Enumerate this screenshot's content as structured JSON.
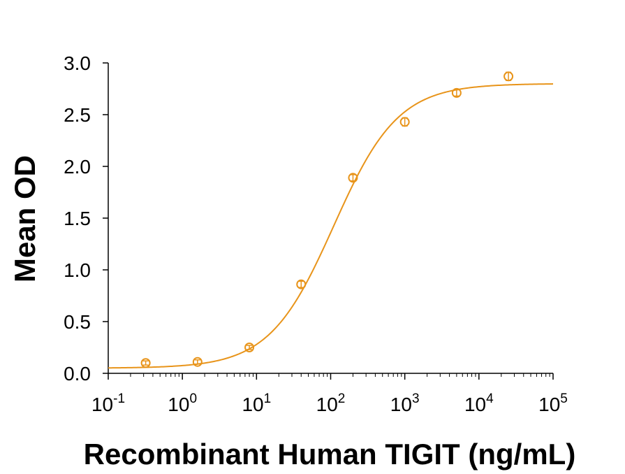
{
  "chart_data": {
    "type": "scatter",
    "title": "",
    "xlabel": "Recombinant Human TIGIT (ng/mL)",
    "ylabel": "Mean OD",
    "x_scale": "log10",
    "xlim": [
      0.1,
      100000
    ],
    "ylim": [
      0,
      3.0
    ],
    "grid": false,
    "legend": "none",
    "color": "#E8941A",
    "x_ticks": [
      {
        "base": "10",
        "exp": "-1"
      },
      {
        "base": "10",
        "exp": "0"
      },
      {
        "base": "10",
        "exp": "1"
      },
      {
        "base": "10",
        "exp": "2"
      },
      {
        "base": "10",
        "exp": "3"
      },
      {
        "base": "10",
        "exp": "4"
      },
      {
        "base": "10",
        "exp": "5"
      }
    ],
    "y_ticks": [
      "0.0",
      "0.5",
      "1.0",
      "1.5",
      "2.0",
      "2.5",
      "3.0"
    ],
    "series": [
      {
        "x": [
          0.32,
          1.6,
          8,
          40,
          200,
          1000,
          5000,
          25000
        ],
        "y": [
          0.1,
          0.11,
          0.25,
          0.86,
          1.89,
          2.43,
          2.71,
          2.87
        ],
        "error": [
          0.02,
          0.02,
          0.02,
          0.03,
          0.03,
          0.04,
          0.03,
          0.04
        ]
      }
    ],
    "fit_curve": {
      "model": "4PL",
      "bottom": 0.05,
      "top": 2.8,
      "ec50": 110,
      "hill": 1.0
    }
  }
}
